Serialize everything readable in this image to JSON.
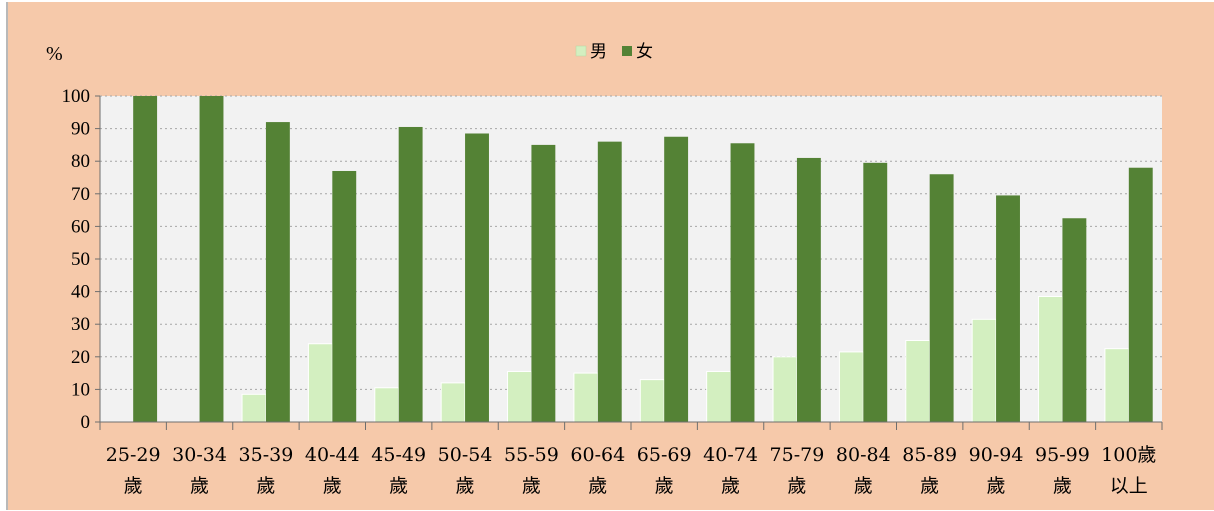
{
  "chart_data": {
    "type": "bar",
    "ylabel": "%",
    "ylim": [
      0,
      100
    ],
    "yticks": [
      0,
      10,
      20,
      30,
      40,
      50,
      60,
      70,
      80,
      90,
      100
    ],
    "grid": true,
    "legend_position": "top-center",
    "categories": [
      [
        "25-29",
        "歲"
      ],
      [
        "30-34",
        "歲"
      ],
      [
        "35-39",
        "歲"
      ],
      [
        "40-44",
        "歲"
      ],
      [
        "45-49",
        "歲"
      ],
      [
        "50-54",
        "歲"
      ],
      [
        "55-59",
        "歲"
      ],
      [
        "60-64",
        "歲"
      ],
      [
        "65-69",
        "歲"
      ],
      [
        "40-74",
        "歲"
      ],
      [
        "75-79",
        "歲"
      ],
      [
        "80-84",
        "歲"
      ],
      [
        "85-89",
        "歲"
      ],
      [
        "90-94",
        "歲"
      ],
      [
        "95-99",
        "歲"
      ],
      [
        "100歲",
        "以上"
      ]
    ],
    "series": [
      {
        "name": "男",
        "color": "#d3efc0",
        "values": [
          0,
          0,
          8.5,
          24,
          10.5,
          12,
          15.5,
          15,
          13,
          15.5,
          20,
          21.5,
          25,
          31.5,
          38.5,
          22.5
        ]
      },
      {
        "name": "女",
        "color": "#548235",
        "values": [
          100,
          100,
          92,
          77,
          90.5,
          88.5,
          85,
          86,
          87.5,
          85.5,
          81,
          79.5,
          76,
          69.5,
          62.5,
          78
        ]
      }
    ]
  }
}
